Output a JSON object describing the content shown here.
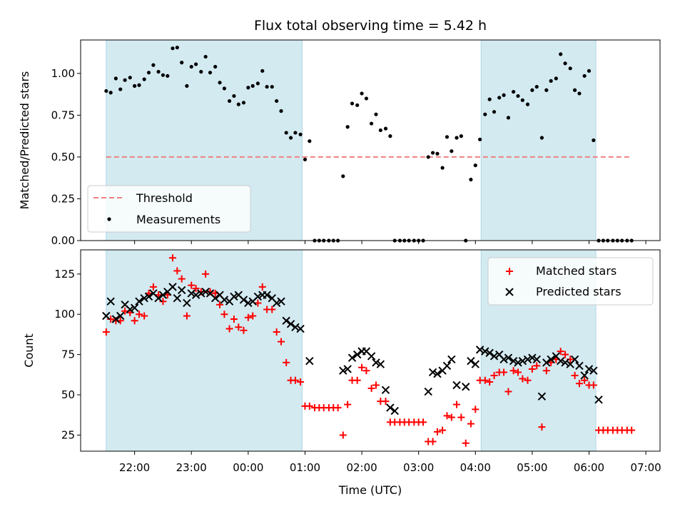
{
  "chart_data": {
    "type": "scatter",
    "title": "Flux total observing time = 5.42 h",
    "xlabel": "Time (UTC)",
    "x_tick_labels": [
      "22:00",
      "23:00",
      "00:00",
      "01:00",
      "02:00",
      "03:00",
      "04:00",
      "05:00",
      "06:00",
      "07:00"
    ],
    "x_range_hours": [
      -2.95,
      7.25
    ],
    "shaded_intervals_hours": [
      [
        -2.5,
        0.95
      ],
      [
        4.1,
        6.12
      ]
    ],
    "shade_color": "#d3eaf1",
    "panels": [
      {
        "ylabel": "Matched/Predicted stars",
        "ylim": [
          0,
          1.2
        ],
        "yticks": [
          0.0,
          0.25,
          0.5,
          0.75,
          1.0
        ],
        "ytick_labels": [
          "0.00",
          "0.25",
          "0.50",
          "0.75",
          "1.00"
        ],
        "legend_position": "lower-left",
        "threshold": {
          "name": "Threshold",
          "value": 0.5,
          "x_start": -2.5,
          "x_end": 6.75,
          "color": "#f08080"
        },
        "series": [
          {
            "name": "Measurements",
            "marker": "dot",
            "color": "#000000",
            "x": [
              -2.5,
              -2.42,
              -2.33,
              -2.25,
              -2.17,
              -2.08,
              -2.0,
              -1.92,
              -1.83,
              -1.75,
              -1.67,
              -1.58,
              -1.5,
              -1.42,
              -1.33,
              -1.25,
              -1.17,
              -1.08,
              -1.0,
              -0.92,
              -0.83,
              -0.75,
              -0.67,
              -0.58,
              -0.5,
              -0.42,
              -0.33,
              -0.25,
              -0.17,
              -0.08,
              0.0,
              0.08,
              0.17,
              0.25,
              0.33,
              0.42,
              0.5,
              0.58,
              0.67,
              0.75,
              0.83,
              0.92,
              1.0,
              1.08,
              1.17,
              1.25,
              1.33,
              1.42,
              1.5,
              1.58,
              1.67,
              1.75,
              1.83,
              1.92,
              2.0,
              2.08,
              2.17,
              2.25,
              2.33,
              2.42,
              2.5,
              2.58,
              2.67,
              2.75,
              2.83,
              2.92,
              3.0,
              3.08,
              3.17,
              3.25,
              3.33,
              3.42,
              3.5,
              3.58,
              3.67,
              3.75,
              3.83,
              3.92,
              4.0,
              4.08,
              4.17,
              4.25,
              4.33,
              4.42,
              4.5,
              4.58,
              4.67,
              4.75,
              4.83,
              4.92,
              5.0,
              5.08,
              5.17,
              5.25,
              5.33,
              5.42,
              5.5,
              5.58,
              5.67,
              5.75,
              5.83,
              5.92,
              6.0,
              6.08,
              6.17,
              6.25,
              6.33,
              6.42,
              6.5,
              6.58,
              6.67,
              6.75
            ],
            "y": [
              0.895,
              0.885,
              0.97,
              0.905,
              0.96,
              0.975,
              0.925,
              0.93,
              0.965,
              1.005,
              1.05,
              1.01,
              0.99,
              0.985,
              1.15,
              1.155,
              1.065,
              0.925,
              1.04,
              1.055,
              1.01,
              1.1,
              1.005,
              1.04,
              0.945,
              0.91,
              0.835,
              0.865,
              0.815,
              0.825,
              0.915,
              0.925,
              0.94,
              1.015,
              0.92,
              0.92,
              0.835,
              0.775,
              0.645,
              0.615,
              0.645,
              0.635,
              0.485,
              0.595,
              0.0,
              0.0,
              0.0,
              0.0,
              0.0,
              0.0,
              0.385,
              0.68,
              0.82,
              0.81,
              0.88,
              0.85,
              0.7,
              0.755,
              0.66,
              0.67,
              0.625,
              0.0,
              0.0,
              0.0,
              0.0,
              0.0,
              0.0,
              0.0,
              0.5,
              0.525,
              0.52,
              0.435,
              0.62,
              0.535,
              0.615,
              0.625,
              0.0,
              0.365,
              0.45,
              0.605,
              0.755,
              0.845,
              0.77,
              0.855,
              0.87,
              0.735,
              0.89,
              0.865,
              0.84,
              0.815,
              0.9,
              0.92,
              0.615,
              0.9,
              0.955,
              0.97,
              1.115,
              1.06,
              1.03,
              0.9,
              0.88,
              0.985,
              1.015,
              0.6,
              0.0,
              0.0,
              0.0,
              0.0,
              0.0,
              0.0,
              0.0,
              0.0
            ]
          }
        ]
      },
      {
        "ylabel": "Count",
        "ylim": [
          15,
          140
        ],
        "yticks": [
          25,
          50,
          75,
          100,
          125
        ],
        "ytick_labels": [
          "25",
          "50",
          "75",
          "100",
          "125"
        ],
        "legend_position": "upper-right",
        "series": [
          {
            "name": "Matched stars",
            "marker": "plus",
            "color": "#ff0000",
            "x": [
              -2.5,
              -2.42,
              -2.33,
              -2.25,
              -2.17,
              -2.08,
              -2.0,
              -1.92,
              -1.83,
              -1.75,
              -1.67,
              -1.58,
              -1.5,
              -1.42,
              -1.33,
              -1.25,
              -1.17,
              -1.08,
              -1.0,
              -0.92,
              -0.83,
              -0.75,
              -0.67,
              -0.58,
              -0.5,
              -0.42,
              -0.33,
              -0.25,
              -0.17,
              -0.08,
              0.0,
              0.08,
              0.17,
              0.25,
              0.33,
              0.42,
              0.5,
              0.58,
              0.67,
              0.75,
              0.83,
              0.92,
              1.0,
              1.08,
              1.17,
              1.25,
              1.33,
              1.42,
              1.5,
              1.58,
              1.67,
              1.75,
              1.83,
              1.92,
              2.0,
              2.08,
              2.17,
              2.25,
              2.33,
              2.42,
              2.5,
              2.58,
              2.67,
              2.75,
              2.83,
              2.92,
              3.0,
              3.08,
              3.17,
              3.25,
              3.33,
              3.42,
              3.5,
              3.58,
              3.67,
              3.75,
              3.83,
              3.92,
              4.0,
              4.08,
              4.17,
              4.25,
              4.33,
              4.42,
              4.5,
              4.58,
              4.67,
              4.75,
              4.83,
              4.92,
              5.0,
              5.08,
              5.17,
              5.25,
              5.33,
              5.42,
              5.5,
              5.58,
              5.67,
              5.75,
              5.83,
              5.92,
              6.0,
              6.08,
              6.17,
              6.25,
              6.33,
              6.42,
              6.5,
              6.58,
              6.67,
              6.75
            ],
            "y": [
              89,
              97,
              96,
              96,
              102,
              101,
              96,
              100,
              99,
              113,
              117,
              112,
              108,
              112,
              135,
              127,
              122,
              99,
              118,
              116,
              114,
              125,
              114,
              113,
              106,
              100,
              91,
              97,
              92,
              90,
              98,
              99,
              107,
              117,
              103,
              103,
              89,
              83,
              70,
              59,
              59,
              58,
              43,
              43,
              42,
              42,
              42,
              42,
              42,
              42,
              25,
              44,
              59,
              59,
              67,
              65,
              54,
              56,
              46,
              46,
              33,
              33,
              33,
              33,
              33,
              33,
              33,
              33,
              21,
              21,
              27,
              28,
              37,
              36,
              44,
              36,
              20,
              32,
              41,
              59,
              59,
              58,
              62,
              64,
              64,
              52,
              65,
              64,
              60,
              59,
              66,
              68,
              30,
              65,
              70,
              72,
              77,
              75,
              72,
              62,
              57,
              59,
              56,
              56,
              28,
              28,
              28,
              28,
              28,
              28,
              28,
              28
            ]
          },
          {
            "name": "Predicted stars",
            "marker": "x",
            "color": "#000000",
            "x": [
              -2.5,
              -2.42,
              -2.33,
              -2.25,
              -2.17,
              -2.08,
              -2.0,
              -1.92,
              -1.83,
              -1.75,
              -1.67,
              -1.58,
              -1.5,
              -1.42,
              -1.33,
              -1.25,
              -1.17,
              -1.08,
              -1.0,
              -0.92,
              -0.83,
              -0.75,
              -0.67,
              -0.58,
              -0.5,
              -0.42,
              -0.33,
              -0.25,
              -0.17,
              -0.08,
              0.0,
              0.08,
              0.17,
              0.25,
              0.33,
              0.42,
              0.5,
              0.58,
              0.67,
              0.75,
              0.83,
              0.92,
              1.08,
              1.67,
              1.75,
              1.83,
              1.92,
              2.0,
              2.08,
              2.17,
              2.25,
              2.33,
              2.42,
              2.5,
              2.58,
              3.17,
              3.25,
              3.33,
              3.42,
              3.5,
              3.58,
              3.67,
              3.83,
              3.92,
              4.0,
              4.08,
              4.17,
              4.25,
              4.33,
              4.42,
              4.5,
              4.58,
              4.67,
              4.75,
              4.83,
              4.92,
              5.0,
              5.08,
              5.17,
              5.25,
              5.33,
              5.42,
              5.5,
              5.58,
              5.67,
              5.75,
              5.83,
              5.92,
              6.0,
              6.08,
              6.17
            ],
            "y": [
              99,
              108,
              97,
              99,
              106,
              103,
              104,
              108,
              110,
              111,
              113,
              110,
              112,
              114,
              117,
              110,
              115,
              107,
              113,
              112,
              113,
              114,
              113,
              110,
              112,
              109,
              108,
              111,
              112,
              109,
              107,
              108,
              111,
              112,
              112,
              110,
              107,
              108,
              96,
              94,
              92,
              91,
              71,
              65,
              66,
              73,
              75,
              77,
              77,
              74,
              70,
              69,
              53,
              42,
              40,
              52,
              64,
              63,
              65,
              68,
              72,
              56,
              55,
              71,
              69,
              78,
              77,
              76,
              74,
              75,
              72,
              73,
              71,
              70,
              71,
              72,
              73,
              72,
              49,
              70,
              72,
              74,
              71,
              70,
              69,
              72,
              68,
              62,
              66,
              65,
              47
            ]
          }
        ]
      }
    ]
  }
}
